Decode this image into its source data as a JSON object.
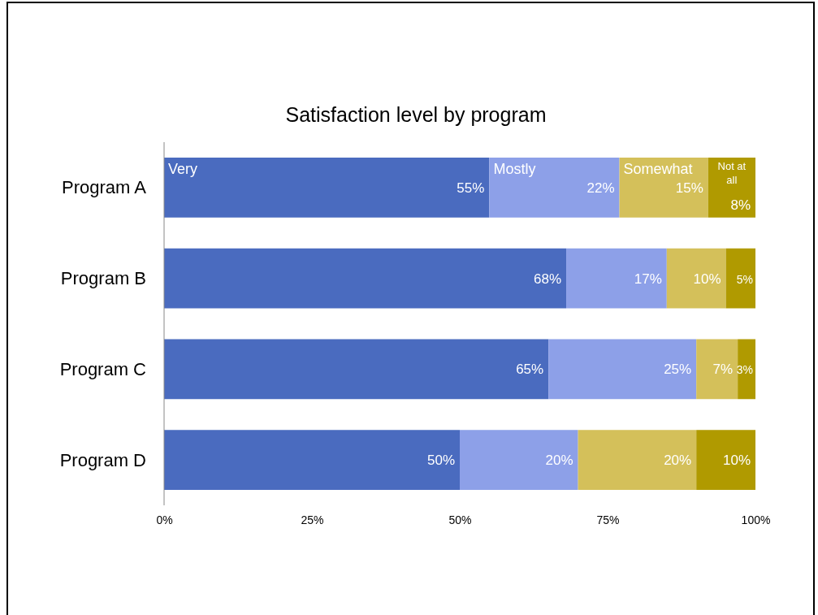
{
  "chart_data": {
    "type": "bar",
    "orientation": "horizontal",
    "stacked": true,
    "title": "Satisfaction level by program",
    "categories": [
      "Program A",
      "Program B",
      "Program C",
      "Program D"
    ],
    "series": [
      {
        "name": "Very",
        "color": "#4a6bbf",
        "values": [
          55,
          68,
          65,
          50
        ],
        "value_labels": [
          "55%",
          "68%",
          "65%",
          "50%"
        ]
      },
      {
        "name": "Mostly",
        "color": "#8da0e8",
        "values": [
          22,
          17,
          25,
          20
        ],
        "value_labels": [
          "22%",
          "17%",
          "25%",
          "20%"
        ]
      },
      {
        "name": "Somewhat",
        "color": "#d4c05a",
        "values": [
          15,
          10,
          7,
          20
        ],
        "value_labels": [
          "15%",
          "10%",
          "7%",
          "20%"
        ]
      },
      {
        "name": "Not at all",
        "color": "#b09a00",
        "values": [
          8,
          5,
          3,
          10
        ],
        "value_labels": [
          "8%",
          "5%",
          "3%",
          "10%"
        ]
      }
    ],
    "xlim": [
      0,
      100
    ],
    "xticks": [
      {
        "value": 0,
        "label": "0%"
      },
      {
        "value": 25,
        "label": "25%"
      },
      {
        "value": 50,
        "label": "50%"
      },
      {
        "value": 75,
        "label": "75%"
      },
      {
        "value": 100,
        "label": "100%"
      }
    ],
    "grid": false
  }
}
